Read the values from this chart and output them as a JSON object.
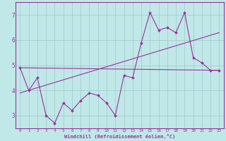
{
  "xlabel": "Windchill (Refroidissement éolien,°C)",
  "bg_color": "#c0e8e8",
  "line_color": "#993399",
  "grid_color": "#a0c8c8",
  "x_data": [
    0,
    1,
    2,
    3,
    4,
    5,
    6,
    7,
    8,
    9,
    10,
    11,
    12,
    13,
    14,
    15,
    16,
    17,
    18,
    19,
    20,
    21,
    22,
    23
  ],
  "y_data": [
    4.9,
    4.0,
    4.5,
    3.0,
    2.7,
    3.5,
    3.2,
    3.6,
    3.9,
    3.8,
    3.5,
    3.0,
    4.6,
    4.5,
    5.9,
    7.1,
    6.4,
    6.5,
    6.3,
    7.1,
    5.3,
    5.1,
    4.8,
    4.8
  ],
  "trend1_x": [
    0,
    23
  ],
  "trend1_y": [
    4.9,
    4.8
  ],
  "trend2_x": [
    0,
    23
  ],
  "trend2_y": [
    3.9,
    6.3
  ],
  "ylim": [
    2.5,
    7.5
  ],
  "yticks": [
    3,
    4,
    5,
    6,
    7
  ],
  "xlim": [
    -0.5,
    23.5
  ],
  "xticks": [
    0,
    1,
    2,
    3,
    4,
    5,
    6,
    7,
    8,
    9,
    10,
    11,
    12,
    13,
    14,
    15,
    16,
    17,
    18,
    19,
    20,
    21,
    22,
    23
  ],
  "fig_width": 3.2,
  "fig_height": 2.0,
  "dpi": 100
}
